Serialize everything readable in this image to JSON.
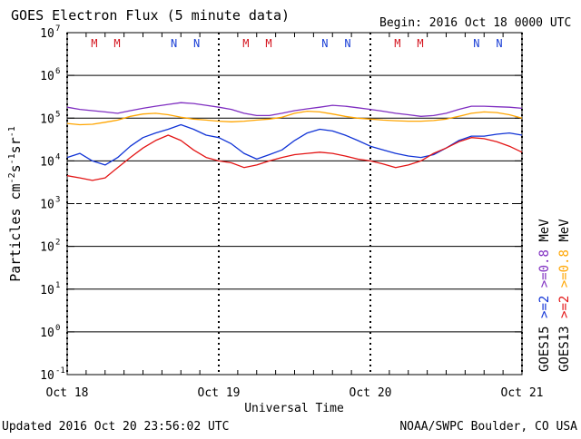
{
  "header": {
    "title": "GOES Electron Flux (5 minute data)",
    "begin": "Begin: 2016 Oct 18 0000 UTC"
  },
  "footer": {
    "updated": "Updated 2016 Oct 20 23:56:02 UTC",
    "credit": "NOAA/SWPC Boulder, CO USA"
  },
  "colors": {
    "goes15_ge08": "#7f2ec1",
    "goes13_ge08": "#ffa500",
    "goes15_ge2": "#1033d6",
    "goes13_ge2": "#e31515",
    "marker_m": "#d4141e",
    "marker_n": "#1a3fd6"
  },
  "chart_data": {
    "type": "line",
    "title": "GOES Electron Flux (5 minute data)",
    "xlabel": "Universal Time",
    "ylabel_base": "Particles cm",
    "ylabel_parts": [
      "Particles cm",
      "-2",
      "s",
      "-1",
      "sr",
      "-1"
    ],
    "y_scale": "log",
    "ylim": [
      0.1,
      10000000
    ],
    "y_ticks": [
      {
        "value": 10000000,
        "base": "10",
        "exp": "7"
      },
      {
        "value": 1000000,
        "base": "10",
        "exp": "6"
      },
      {
        "value": 100000,
        "base": "10",
        "exp": "5"
      },
      {
        "value": 10000,
        "base": "10",
        "exp": "4"
      },
      {
        "value": 1000,
        "base": "10",
        "exp": "3"
      },
      {
        "value": 100,
        "base": "10",
        "exp": "2"
      },
      {
        "value": 10,
        "base": "10",
        "exp": "1"
      },
      {
        "value": 1,
        "base": "10",
        "exp": "0"
      },
      {
        "value": 0.1,
        "base": "10",
        "exp": "-1"
      }
    ],
    "x_unit": "hours since 2016 Oct 18 0000 UTC",
    "xlim": [
      0,
      72
    ],
    "x_ticks": [
      {
        "value": 0,
        "label": "Oct 18"
      },
      {
        "value": 24,
        "label": "Oct 19"
      },
      {
        "value": 48,
        "label": "Oct 20"
      },
      {
        "value": 72,
        "label": "Oct 21"
      }
    ],
    "threshold": {
      "value": 1000,
      "style": "dashed"
    },
    "markers": [
      {
        "x": 4.3,
        "label": "M",
        "type": "m"
      },
      {
        "x": 7.9,
        "label": "M",
        "type": "m"
      },
      {
        "x": 16.9,
        "label": "N",
        "type": "n"
      },
      {
        "x": 20.5,
        "label": "N",
        "type": "n"
      },
      {
        "x": 28.3,
        "label": "M",
        "type": "m"
      },
      {
        "x": 31.9,
        "label": "M",
        "type": "m"
      },
      {
        "x": 40.8,
        "label": "N",
        "type": "n"
      },
      {
        "x": 44.4,
        "label": "N",
        "type": "n"
      },
      {
        "x": 52.3,
        "label": "M",
        "type": "m"
      },
      {
        "x": 55.9,
        "label": "M",
        "type": "m"
      },
      {
        "x": 64.8,
        "label": "N",
        "type": "n"
      },
      {
        "x": 68.4,
        "label": "N",
        "type": "n"
      }
    ],
    "dashed_verticals": [
      0,
      24,
      48,
      72
    ],
    "series": [
      {
        "name": ">=0.8 MeV",
        "satellite": "GOES15",
        "color_key": "goes15_ge08",
        "x": [
          0,
          2,
          4,
          6,
          8,
          10,
          12,
          14,
          16,
          18,
          20,
          22,
          24,
          26,
          28,
          30,
          32,
          34,
          36,
          38,
          40,
          42,
          44,
          46,
          48,
          50,
          52,
          54,
          56,
          58,
          60,
          62,
          64,
          66,
          68,
          70,
          72
        ],
        "values": [
          180000,
          160000,
          150000,
          140000,
          130000,
          150000,
          170000,
          190000,
          210000,
          230000,
          220000,
          200000,
          180000,
          160000,
          130000,
          115000,
          115000,
          130000,
          150000,
          165000,
          180000,
          200000,
          190000,
          175000,
          160000,
          145000,
          130000,
          120000,
          110000,
          115000,
          130000,
          160000,
          190000,
          190000,
          185000,
          180000,
          170000
        ]
      },
      {
        "name": ">=0.8 MeV",
        "satellite": "GOES13",
        "color_key": "goes13_ge08",
        "x": [
          0,
          2,
          4,
          6,
          8,
          10,
          12,
          14,
          16,
          18,
          20,
          22,
          24,
          26,
          28,
          30,
          32,
          34,
          36,
          38,
          40,
          42,
          44,
          46,
          48,
          50,
          52,
          54,
          56,
          58,
          60,
          62,
          64,
          66,
          68,
          70,
          72
        ],
        "values": [
          75000,
          70000,
          72000,
          80000,
          90000,
          110000,
          125000,
          130000,
          120000,
          105000,
          95000,
          90000,
          85000,
          82000,
          85000,
          90000,
          95000,
          105000,
          130000,
          145000,
          140000,
          125000,
          110000,
          100000,
          95000,
          90000,
          87000,
          85000,
          85000,
          88000,
          95000,
          110000,
          130000,
          140000,
          135000,
          120000,
          100000
        ]
      },
      {
        "name": ">=2 MeV",
        "satellite": "GOES15",
        "color_key": "goes15_ge2",
        "x": [
          0,
          2,
          4,
          6,
          8,
          10,
          12,
          14,
          16,
          18,
          20,
          22,
          24,
          26,
          28,
          30,
          32,
          34,
          36,
          38,
          40,
          42,
          44,
          46,
          48,
          50,
          52,
          54,
          56,
          58,
          60,
          62,
          64,
          66,
          68,
          70,
          72
        ],
        "values": [
          12000,
          15000,
          10000,
          8000,
          12000,
          22000,
          35000,
          45000,
          55000,
          70000,
          55000,
          40000,
          35000,
          25000,
          15000,
          11000,
          14000,
          18000,
          30000,
          45000,
          55000,
          50000,
          40000,
          30000,
          22000,
          18000,
          15000,
          13000,
          12000,
          14000,
          20000,
          30000,
          38000,
          38000,
          42000,
          45000,
          40000
        ]
      },
      {
        "name": ">=2 MeV",
        "satellite": "GOES13",
        "color_key": "goes13_ge2",
        "x": [
          0,
          2,
          4,
          6,
          8,
          10,
          12,
          14,
          16,
          18,
          20,
          22,
          24,
          26,
          28,
          30,
          32,
          34,
          36,
          38,
          40,
          42,
          44,
          46,
          48,
          50,
          52,
          54,
          56,
          58,
          60,
          62,
          64,
          66,
          68,
          70,
          72
        ],
        "values": [
          4500,
          4000,
          3500,
          4000,
          7000,
          12000,
          20000,
          30000,
          40000,
          30000,
          18000,
          12000,
          10000,
          9000,
          7000,
          8000,
          10000,
          12000,
          14000,
          15000,
          16000,
          15000,
          13000,
          11000,
          10000,
          8500,
          7000,
          8000,
          10000,
          15000,
          20000,
          28000,
          35000,
          33000,
          28000,
          22000,
          16000
        ]
      }
    ],
    "legend_groups": [
      {
        "sat_label": "GOES15",
        "energy_parts": [
          ">=2",
          ">=0.8"
        ],
        "unit": "MeV",
        "color_keys": [
          "goes15_ge2",
          "goes15_ge08"
        ]
      },
      {
        "sat_label": "GOES13",
        "energy_parts": [
          ">=2",
          ">=0.8"
        ],
        "unit": "MeV",
        "color_keys": [
          "goes13_ge2",
          "goes13_ge08"
        ]
      }
    ]
  }
}
